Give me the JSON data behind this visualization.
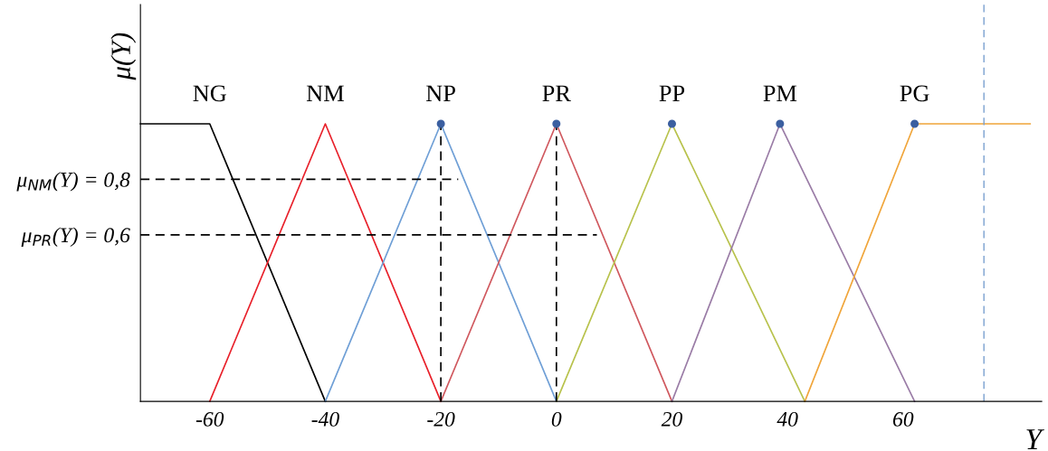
{
  "chart_data": {
    "type": "line",
    "xlabel": "Y",
    "ylabel": "μ(Y)",
    "xlim": [
      -72,
      84
    ],
    "ylim": [
      0,
      1.43
    ],
    "xticks": [
      {
        "value": -60,
        "label": "-60"
      },
      -40,
      -20,
      0,
      20,
      40,
      60
    ],
    "yticks": [
      {
        "value": 0.8,
        "label": "μ$_{NM}$(Y) = 0,8"
      },
      {
        "value": 0.6,
        "label": "μ$_{PR}$(Y) = 0,6"
      }
    ],
    "grid": false,
    "legend": false,
    "series": [
      {
        "name": "NG",
        "color": "#000000",
        "x": [
          -72,
          -60,
          -40
        ],
        "values": [
          1,
          1,
          0
        ]
      },
      {
        "name": "NM",
        "color": "#e8202a",
        "x": [
          -60,
          -40,
          -20
        ],
        "values": [
          0,
          1,
          0
        ]
      },
      {
        "name": "NP",
        "color": "#6f9fd6",
        "x": [
          -40,
          -20,
          0
        ],
        "values": [
          0,
          1,
          0
        ]
      },
      {
        "name": "PR",
        "color": "#d0585e",
        "x": [
          -20,
          0,
          20
        ],
        "values": [
          0,
          1,
          0
        ]
      },
      {
        "name": "PP",
        "color": "#b8c24c",
        "x": [
          0,
          20,
          43
        ],
        "values": [
          0,
          1,
          0
        ]
      },
      {
        "name": "PM",
        "color": "#9a7ca6",
        "x": [
          20,
          38.7,
          62
        ],
        "values": [
          0,
          1,
          0
        ]
      },
      {
        "name": "PG",
        "color": "#f0a53a",
        "x": [
          43,
          62,
          82
        ],
        "values": [
          0,
          1,
          1
        ]
      },
      {
        "type": "scatter",
        "marker": "circle",
        "color": "#3b5fa0",
        "x": [
          -20,
          0,
          20,
          38.7,
          62
        ],
        "values": [
          1,
          1,
          1,
          1,
          1
        ]
      },
      {
        "line_style": "dashed",
        "color": "#000000",
        "x": [
          -72,
          -17
        ],
        "values": [
          0.8,
          0.8
        ]
      },
      {
        "line_style": "dashed",
        "color": "#000000",
        "x": [
          -72,
          7
        ],
        "values": [
          0.6,
          0.6
        ]
      },
      {
        "line_style": "dashed",
        "color": "#000000",
        "x": [
          -20,
          -20
        ],
        "values": [
          0,
          1
        ]
      },
      {
        "line_style": "dashed",
        "color": "#000000",
        "x": [
          0,
          0
        ],
        "values": [
          0,
          1
        ]
      }
    ],
    "ref_lines": [
      {
        "axis": "x",
        "value": 74,
        "color": "#7aa0d0",
        "line_style": "dashed"
      }
    ]
  }
}
